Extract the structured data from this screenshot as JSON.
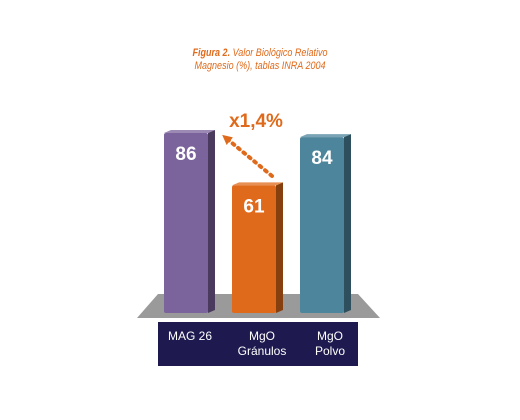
{
  "chart_data": {
    "type": "bar",
    "title_prefix": "Figura 2.",
    "title_line1_rest": "Valor Biológico Relativo",
    "title_line2": "Magnesio (%), tablas INRA 2004",
    "categories": [
      "MAG 26",
      "MgO Gránulos",
      "MgO Polvo"
    ],
    "category_lines": [
      [
        "MAG 26"
      ],
      [
        "MgO",
        "Gránulos"
      ],
      [
        "MgO",
        "Polvo"
      ]
    ],
    "values": [
      86,
      61,
      84
    ],
    "value_labels": [
      "86",
      "61",
      "84"
    ],
    "colors": [
      "#7b639c",
      "#e06a1b",
      "#4d869c"
    ],
    "annotation": "x1,4%",
    "annotation_color": "#e06a1b",
    "xlabel": "",
    "ylabel": "",
    "grid": false,
    "legend": "none"
  }
}
